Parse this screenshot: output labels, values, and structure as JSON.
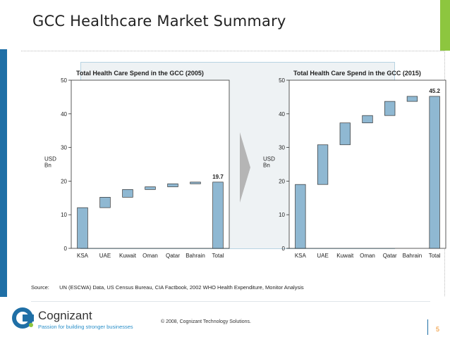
{
  "slide": {
    "title": "GCC Healthcare Market Summary",
    "page_number": "5"
  },
  "colors": {
    "bar_fill": "#8fb8d2",
    "bar_stroke": "#333333",
    "accent_green": "#8dc63f",
    "accent_blue": "#1f6fa6",
    "arrow": "#b5b5b5"
  },
  "chart_data": [
    {
      "type": "bar",
      "subtype": "waterfall",
      "title": "Total Health Care Spend in the GCC (2005)",
      "ylabel": "USD Bn",
      "ylabel_lines": [
        "USD",
        "Bn"
      ],
      "ylim": [
        0,
        50
      ],
      "yticks": [
        0,
        10,
        20,
        30,
        40,
        50
      ],
      "categories": [
        "KSA",
        "UAE",
        "Kuwait",
        "Oman",
        "Qatar",
        "Bahrain",
        "Total"
      ],
      "bars": [
        {
          "category": "KSA",
          "start": 0,
          "end": 12.1
        },
        {
          "category": "UAE",
          "start": 12.1,
          "end": 15.2
        },
        {
          "category": "Kuwait",
          "start": 15.2,
          "end": 17.5
        },
        {
          "category": "Oman",
          "start": 17.5,
          "end": 18.3
        },
        {
          "category": "Qatar",
          "start": 18.3,
          "end": 19.2
        },
        {
          "category": "Bahrain",
          "start": 19.2,
          "end": 19.7
        },
        {
          "category": "Total",
          "start": 0,
          "end": 19.7
        }
      ],
      "total_label": "19.7"
    },
    {
      "type": "bar",
      "subtype": "waterfall",
      "title": "Total Health Care Spend in the GCC (2015)",
      "ylabel": "USD Bn",
      "ylabel_lines": [
        "USD",
        "Bn"
      ],
      "ylim": [
        0,
        50
      ],
      "yticks": [
        0,
        10,
        20,
        30,
        40,
        50
      ],
      "categories": [
        "KSA",
        "UAE",
        "Kuwait",
        "Oman",
        "Qatar",
        "Bahrain",
        "Total"
      ],
      "bars": [
        {
          "category": "KSA",
          "start": 0,
          "end": 19
        },
        {
          "category": "UAE",
          "start": 19,
          "end": 30.8
        },
        {
          "category": "Kuwait",
          "start": 30.8,
          "end": 37.3
        },
        {
          "category": "Oman",
          "start": 37.3,
          "end": 39.5
        },
        {
          "category": "Qatar",
          "start": 39.5,
          "end": 43.7
        },
        {
          "category": "Bahrain",
          "start": 43.7,
          "end": 45.2
        },
        {
          "category": "Total",
          "start": 0,
          "end": 45.2
        }
      ],
      "total_label": "45.2"
    }
  ],
  "source": {
    "label": "Source:",
    "text": "UN (ESCWA) Data, US Census Bureau, CIA Factbook, 2002 WHO Health Expenditure,  Monitor Analysis"
  },
  "footer": {
    "company": "Cognizant",
    "tagline": "Passion for building stronger businesses",
    "copyright": "© 2008, Cognizant Technology Solutions."
  }
}
